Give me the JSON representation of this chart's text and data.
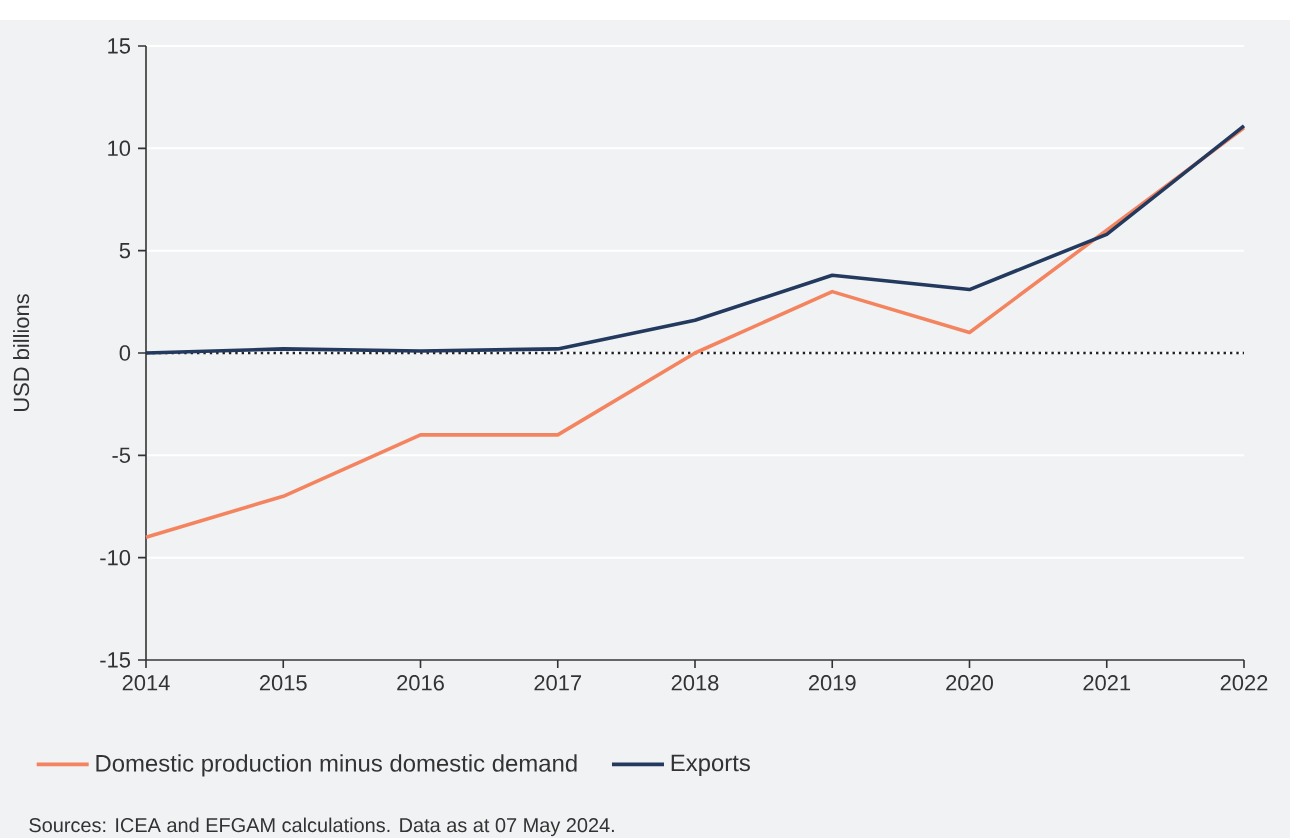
{
  "chart_data": {
    "type": "line",
    "ylabel": "USD billions",
    "x": [
      2014,
      2015,
      2016,
      2017,
      2018,
      2019,
      2020,
      2021,
      2022
    ],
    "series": [
      {
        "name": "Domestic production minus domestic demand",
        "color": "#f4845f",
        "values": [
          -9,
          -7,
          -4,
          -4,
          0,
          3,
          1,
          6,
          11
        ]
      },
      {
        "name": "Exports",
        "color": "#233a5e",
        "values": [
          0,
          0.2,
          0.1,
          0.2,
          1.6,
          3.8,
          3.1,
          5.8,
          11.1
        ]
      }
    ],
    "xlim": [
      2014,
      2022
    ],
    "xticks": [
      2014,
      2015,
      2016,
      2017,
      2018,
      2019,
      2020,
      2021,
      2022
    ],
    "ylim": [
      -15,
      15
    ],
    "yticks": [
      -15,
      -10,
      -5,
      0,
      5,
      10,
      15
    ],
    "grid": "y",
    "legend": "bottom",
    "marker": "none",
    "line_style": "solid",
    "ref_lines": [
      {
        "axis": "y",
        "value": 0,
        "color": "#222222",
        "line_style": "dotted"
      }
    ],
    "annotations": [
      "Sources: ICEA and EFGAM calculations. Data as at 07 May 2024."
    ]
  }
}
